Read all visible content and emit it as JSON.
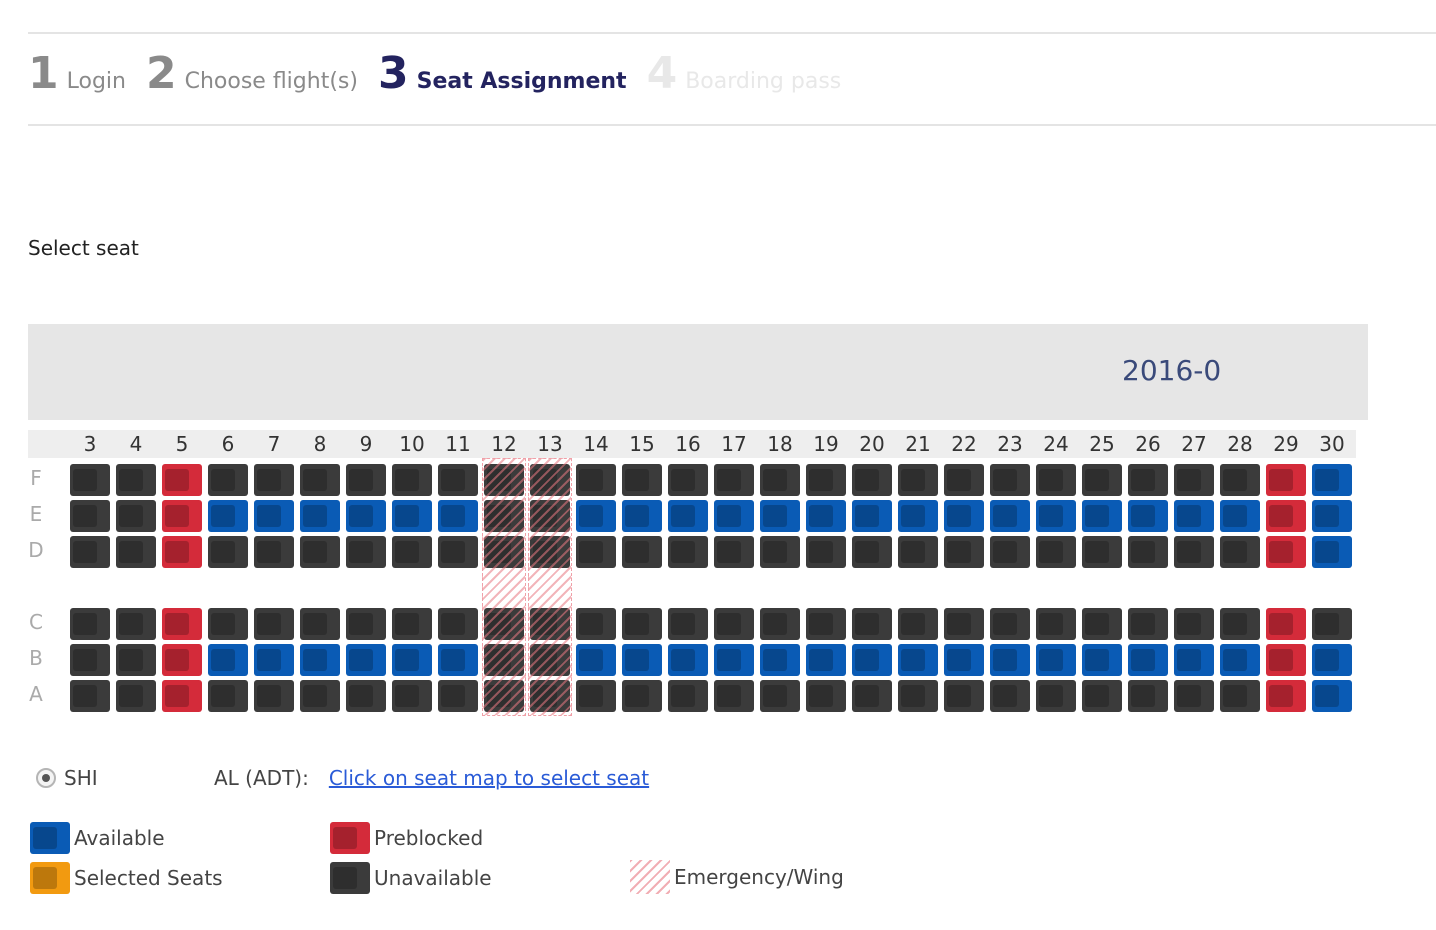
{
  "steps": [
    {
      "num": "1",
      "label": "Login",
      "state": "done"
    },
    {
      "num": "2",
      "label": "Choose flight(s)",
      "state": "done"
    },
    {
      "num": "3",
      "label": "Seat Assignment",
      "state": "active"
    },
    {
      "num": "4",
      "label": "Boarding pass",
      "state": "future"
    }
  ],
  "select_title": "Select seat",
  "banner": {
    "date": "2016-0"
  },
  "seat_map": {
    "columns": [
      "3",
      "4",
      "5",
      "6",
      "7",
      "8",
      "9",
      "10",
      "11",
      "12",
      "13",
      "14",
      "15",
      "16",
      "17",
      "18",
      "19",
      "20",
      "21",
      "22",
      "23",
      "24",
      "25",
      "26",
      "27",
      "28",
      "29",
      "30"
    ],
    "rows": [
      "F",
      "E",
      "D",
      "C",
      "B",
      "A"
    ],
    "emergency_columns": [
      "12",
      "13"
    ],
    "seats": {
      "F": [
        "U",
        "U",
        "P",
        "U",
        "U",
        "U",
        "U",
        "U",
        "U",
        "U",
        "U",
        "U",
        "U",
        "U",
        "U",
        "U",
        "U",
        "U",
        "U",
        "U",
        "U",
        "U",
        "U",
        "U",
        "U",
        "U",
        "P",
        "A"
      ],
      "E": [
        "U",
        "U",
        "P",
        "A",
        "A",
        "A",
        "A",
        "A",
        "A",
        "U",
        "U",
        "A",
        "A",
        "A",
        "A",
        "A",
        "A",
        "A",
        "A",
        "A",
        "A",
        "A",
        "A",
        "A",
        "A",
        "A",
        "P",
        "A"
      ],
      "D": [
        "U",
        "U",
        "P",
        "U",
        "U",
        "U",
        "U",
        "U",
        "U",
        "U",
        "U",
        "U",
        "U",
        "U",
        "U",
        "U",
        "U",
        "U",
        "U",
        "U",
        "U",
        "U",
        "U",
        "U",
        "U",
        "U",
        "P",
        "A"
      ],
      "C": [
        "U",
        "U",
        "P",
        "U",
        "U",
        "U",
        "U",
        "U",
        "U",
        "U",
        "U",
        "U",
        "U",
        "U",
        "U",
        "U",
        "U",
        "U",
        "U",
        "U",
        "U",
        "U",
        "U",
        "U",
        "U",
        "U",
        "P",
        "U"
      ],
      "B": [
        "U",
        "U",
        "P",
        "A",
        "A",
        "A",
        "A",
        "A",
        "A",
        "U",
        "U",
        "A",
        "A",
        "A",
        "A",
        "A",
        "A",
        "A",
        "A",
        "A",
        "A",
        "A",
        "A",
        "A",
        "A",
        "A",
        "P",
        "A"
      ],
      "A": [
        "U",
        "U",
        "P",
        "U",
        "U",
        "U",
        "U",
        "U",
        "U",
        "U",
        "U",
        "U",
        "U",
        "U",
        "U",
        "U",
        "U",
        "U",
        "U",
        "U",
        "U",
        "U",
        "U",
        "U",
        "U",
        "U",
        "P",
        "A"
      ]
    }
  },
  "passenger": {
    "name": "SHI",
    "type": "AL (ADT):",
    "link": "Click on seat map to select seat"
  },
  "legend": {
    "available": "Available",
    "selected": "Selected Seats",
    "preblocked": "Preblocked",
    "unavailable": "Unavailable",
    "emergency": "Emergency/Wing"
  },
  "colors": {
    "available": "#0a5bb5",
    "preblocked": "#d42b3a",
    "unavailable": "#3b3b3b",
    "selected": "#f29a10",
    "active_step": "#23235f",
    "link": "#2a5bd7"
  }
}
